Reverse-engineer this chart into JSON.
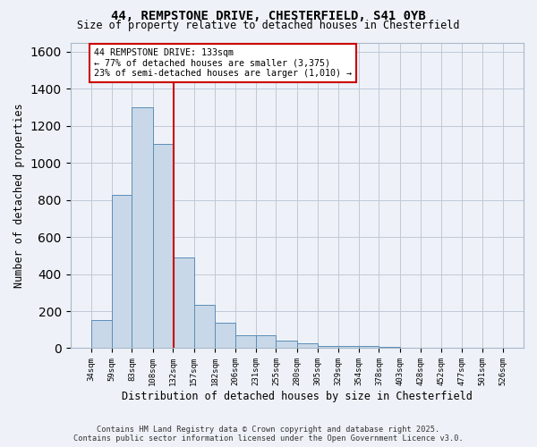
{
  "title_line1": "44, REMPSTONE DRIVE, CHESTERFIELD, S41 0YB",
  "title_line2": "Size of property relative to detached houses in Chesterfield",
  "xlabel": "Distribution of detached houses by size in Chesterfield",
  "ylabel": "Number of detached properties",
  "bar_edges": [
    34,
    59,
    83,
    108,
    132,
    157,
    182,
    206,
    231,
    255,
    280,
    305,
    329,
    354,
    378,
    403,
    428,
    452,
    477,
    501,
    526
  ],
  "bar_heights": [
    150,
    825,
    1300,
    1100,
    490,
    235,
    135,
    70,
    70,
    40,
    25,
    10,
    10,
    10,
    5,
    2,
    2,
    2,
    2,
    2
  ],
  "bar_color": "#c8d8e8",
  "bar_edgecolor": "#5b8db8",
  "grid_color": "#c0c8d8",
  "background_color": "#eef2f8",
  "vline_x": 133,
  "vline_color": "#cc0000",
  "annotation_text": "44 REMPSTONE DRIVE: 133sqm\n← 77% of detached houses are smaller (3,375)\n23% of semi-detached houses are larger (1,010) →",
  "annotation_box_color": "#cc0000",
  "ylim": [
    0,
    1650
  ],
  "yticks": [
    0,
    200,
    400,
    600,
    800,
    1000,
    1200,
    1400,
    1600
  ],
  "footnote": "Contains HM Land Registry data © Crown copyright and database right 2025.\nContains public sector information licensed under the Open Government Licence v3.0."
}
